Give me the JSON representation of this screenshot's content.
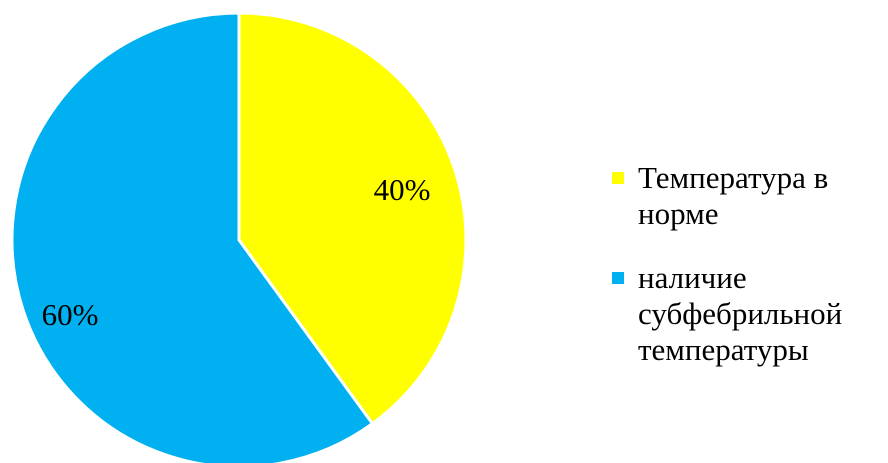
{
  "chart_data": {
    "type": "pie",
    "title": "",
    "categories": [
      "Температура в норме",
      "наличие субфебрильной температуры"
    ],
    "values": [
      40,
      60
    ],
    "data_labels": [
      "40%",
      "60%"
    ],
    "colors": [
      "#FFFF00",
      "#00B0F0"
    ],
    "legend_position": "right",
    "legend": [
      {
        "label": "Температура в норме",
        "color": "#FFFF00"
      },
      {
        "label": "наличие субфебрильной температуры",
        "color": "#00B0F0"
      }
    ]
  }
}
